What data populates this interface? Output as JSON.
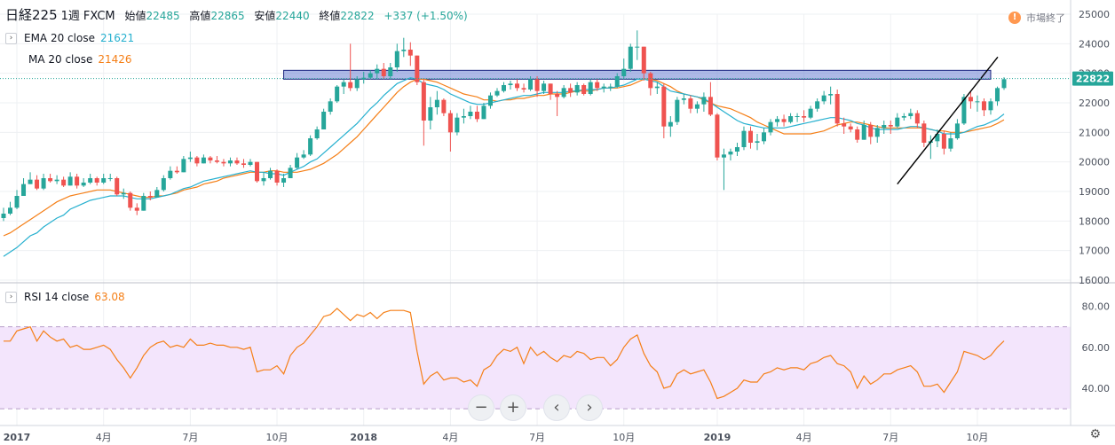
{
  "header": {
    "symbol": "日経225",
    "interval": "1週",
    "source": "FXCM",
    "open_label": "始値",
    "open": "22485",
    "high_label": "高値",
    "high": "22865",
    "low_label": "安値",
    "low": "22440",
    "close_label": "終値",
    "close": "22822",
    "change": "+337 (+1.50%)"
  },
  "legend": {
    "ema": {
      "name": "EMA 20 close",
      "value": "21621"
    },
    "ma": {
      "name": "MA  20 close",
      "value": "21426"
    },
    "rsi": {
      "name": "RSI  14 close",
      "value": "63.08"
    },
    "box_icon": "collapse-icon"
  },
  "market_status": {
    "icon": "exclamation-icon",
    "label": "市場終了"
  },
  "nav_buttons": [
    {
      "icon": "minus-icon",
      "glyph": "−"
    },
    {
      "icon": "plus-icon",
      "glyph": "+"
    },
    {
      "icon": "chevron-left-icon",
      "glyph": "‹"
    },
    {
      "icon": "chevron-right-icon",
      "glyph": "›"
    }
  ],
  "settings_icon": {
    "icon": "gear-icon",
    "glyph": "⚙"
  },
  "colors": {
    "up": "#26a69a",
    "down": "#ef5350",
    "ema": "#26b0cf",
    "ma": "#f57f17",
    "rsi": "#f57f17",
    "rsi_band": "#f3e5fc",
    "resistance": "#6a7fd1",
    "trendline": "#000000"
  },
  "chart_data": {
    "type": "candlestick",
    "price_axis": {
      "min": 16000,
      "max": 25000,
      "ticks": [
        16000,
        17000,
        18000,
        19000,
        20000,
        21000,
        22000,
        23000,
        24000,
        25000
      ],
      "tick_labels": [
        "16000",
        "17000",
        "18000",
        "19000",
        "20000",
        "21000",
        "22000",
        "23000",
        "24000",
        "25000"
      ]
    },
    "last_price": 22822,
    "last_price_label": "22822",
    "x_axis_labels": [
      {
        "week": 2,
        "label": "2017"
      },
      {
        "week": 15,
        "label": "4月"
      },
      {
        "week": 28,
        "label": "7月"
      },
      {
        "week": 41,
        "label": "10月"
      },
      {
        "week": 54,
        "label": "2018"
      },
      {
        "week": 67,
        "label": "4月"
      },
      {
        "week": 80,
        "label": "7月"
      },
      {
        "week": 93,
        "label": "10月"
      },
      {
        "week": 107,
        "label": "2019"
      },
      {
        "week": 120,
        "label": "4月"
      },
      {
        "week": 133,
        "label": "7月"
      },
      {
        "week": 146,
        "label": "10月"
      }
    ],
    "closes": [
      18250,
      18450,
      18850,
      19250,
      19400,
      19100,
      19450,
      19350,
      19400,
      19200,
      19500,
      19200,
      19300,
      19450,
      19300,
      19450,
      19450,
      18900,
      18950,
      18450,
      18350,
      18850,
      18800,
      19050,
      19450,
      19700,
      19650,
      20100,
      20150,
      19950,
      20150,
      20050,
      20000,
      19950,
      20050,
      19950,
      19900,
      20000,
      19350,
      19450,
      19700,
      19300,
      19450,
      19800,
      20150,
      20250,
      20800,
      21100,
      21700,
      22050,
      22550,
      22700,
      22500,
      22800,
      22850,
      23000,
      23150,
      22900,
      23200,
      23750,
      23800,
      23600,
      22700,
      21400,
      21850,
      22100,
      21650,
      21000,
      21500,
      21550,
      21700,
      21450,
      21900,
      22250,
      22400,
      22600,
      22650,
      22500,
      22450,
      22800,
      22400,
      22650,
      22300,
      22200,
      22500,
      22350,
      22600,
      22300,
      22700,
      22500,
      22550,
      22550,
      22900,
      23150,
      23900,
      23900,
      23000,
      22500,
      22550,
      21200,
      21350,
      22100,
      22150,
      21800,
      21950,
      22200,
      21600,
      20150,
      20250,
      20350,
      20500,
      21050,
      20650,
      20700,
      21000,
      21350,
      21450,
      21350,
      21550,
      21550,
      21500,
      21800,
      22050,
      22250,
      22300,
      21300,
      21200,
      21100,
      20750,
      21250,
      20850,
      21150,
      21250,
      21200,
      21500,
      21550,
      21650,
      21300,
      20650,
      20700,
      20950,
      20450,
      20800,
      21300,
      22200,
      22050,
      22050,
      21750,
      22050,
      22500,
      22800
    ],
    "highs": [
      18450,
      18650,
      19050,
      19450,
      19650,
      19550,
      19600,
      19600,
      19550,
      19500,
      19650,
      19600,
      19450,
      19600,
      19500,
      19600,
      19600,
      19500,
      19100,
      19000,
      18600,
      18950,
      19000,
      19150,
      19550,
      19850,
      19850,
      20200,
      20350,
      20200,
      20250,
      20200,
      20200,
      20100,
      20150,
      20150,
      20100,
      20100,
      20000,
      19650,
      19800,
      19750,
      19600,
      19900,
      20300,
      20400,
      20900,
      21200,
      21800,
      22150,
      22600,
      22800,
      24000,
      22900,
      23050,
      23100,
      23300,
      23350,
      23350,
      24000,
      24200,
      24050,
      23600,
      22800,
      22200,
      22400,
      22150,
      21750,
      21650,
      21800,
      21900,
      21900,
      22000,
      22350,
      22500,
      22700,
      22750,
      22800,
      22650,
      22900,
      22900,
      22750,
      22650,
      22400,
      22600,
      22650,
      22700,
      22650,
      22800,
      22800,
      22650,
      22650,
      23000,
      23500,
      24000,
      24450,
      23900,
      23050,
      22700,
      22650,
      21550,
      22200,
      22300,
      22250,
      22050,
      22350,
      22700,
      21650,
      20450,
      20450,
      20650,
      21200,
      21200,
      20950,
      21150,
      21450,
      21550,
      21600,
      21650,
      21650,
      21750,
      21900,
      22150,
      22400,
      22550,
      22450,
      21500,
      21300,
      21200,
      21400,
      21350,
      21250,
      21400,
      21400,
      21650,
      21650,
      21800,
      21750,
      21400,
      20900,
      21100,
      21050,
      21000,
      21450,
      22300,
      22400,
      22250,
      22150,
      22150,
      22550,
      22865
    ],
    "lows": [
      18000,
      18200,
      18400,
      18850,
      19250,
      19050,
      19050,
      19300,
      19250,
      19150,
      19200,
      19100,
      19150,
      19250,
      19200,
      19250,
      19350,
      18850,
      18750,
      18350,
      18200,
      18350,
      18700,
      18800,
      19000,
      19400,
      19600,
      19650,
      20000,
      19850,
      19950,
      19950,
      19950,
      19850,
      19850,
      19900,
      19800,
      19850,
      19300,
      19200,
      19400,
      19200,
      19150,
      19450,
      19750,
      20100,
      20200,
      20750,
      21100,
      21600,
      22000,
      22300,
      22400,
      22400,
      22650,
      22800,
      22800,
      22800,
      22800,
      23050,
      23550,
      23250,
      22600,
      20550,
      21100,
      21600,
      21550,
      20350,
      20900,
      21300,
      21450,
      21350,
      21450,
      21800,
      22200,
      22350,
      22450,
      22400,
      22350,
      22400,
      22200,
      22300,
      22100,
      21550,
      22150,
      22200,
      22250,
      22250,
      22250,
      22400,
      22350,
      22400,
      22500,
      22800,
      23050,
      23450,
      22750,
      22250,
      22300,
      20800,
      20850,
      21250,
      21950,
      21650,
      21650,
      21700,
      21550,
      20050,
      19050,
      20050,
      20200,
      20400,
      20450,
      20400,
      20600,
      20900,
      21200,
      21200,
      21300,
      21350,
      21350,
      21450,
      21700,
      21950,
      21950,
      21200,
      20950,
      21000,
      20650,
      20750,
      20600,
      20650,
      20950,
      20950,
      21150,
      21400,
      21450,
      21150,
      20500,
      20100,
      20500,
      20250,
      20350,
      20750,
      21250,
      21800,
      21700,
      21550,
      21600,
      21900,
      22440
    ],
    "ema20": [
      16800,
      16950,
      17100,
      17300,
      17500,
      17600,
      17800,
      17950,
      18100,
      18200,
      18400,
      18500,
      18600,
      18700,
      18750,
      18800,
      18850,
      18850,
      18850,
      18800,
      18750,
      18750,
      18750,
      18800,
      18850,
      18900,
      19000,
      19100,
      19150,
      19250,
      19350,
      19400,
      19450,
      19500,
      19550,
      19600,
      19650,
      19700,
      19650,
      19650,
      19600,
      19600,
      19550,
      19650,
      19750,
      19850,
      20000,
      20100,
      20300,
      20500,
      20700,
      20900,
      21100,
      21300,
      21550,
      21800,
      22000,
      22250,
      22450,
      22650,
      22750,
      22850,
      22800,
      22650,
      22600,
      22550,
      22450,
      22300,
      22200,
      22100,
      22000,
      21950,
      21950,
      22000,
      22050,
      22100,
      22150,
      22200,
      22250,
      22250,
      22300,
      22350,
      22350,
      22350,
      22350,
      22400,
      22400,
      22450,
      22450,
      22450,
      22500,
      22500,
      22550,
      22600,
      22700,
      22800,
      22800,
      22750,
      22700,
      22550,
      22400,
      22350,
      22300,
      22250,
      22200,
      22150,
      22000,
      21850,
      21700,
      21550,
      21400,
      21300,
      21250,
      21200,
      21150,
      21150,
      21150,
      21150,
      21200,
      21250,
      21300,
      21350,
      21400,
      21450,
      21500,
      21500,
      21450,
      21400,
      21300,
      21250,
      21150,
      21100,
      21100,
      21100,
      21100,
      21150,
      21200,
      21200,
      21150,
      21100,
      21050,
      20950,
      20950,
      20950,
      21000,
      21100,
      21200,
      21250,
      21350,
      21450,
      21621
    ],
    "ma20": [
      17500,
      17600,
      17750,
      17900,
      18050,
      18200,
      18350,
      18500,
      18650,
      18750,
      18850,
      18900,
      18950,
      19000,
      19050,
      19050,
      19050,
      19000,
      18950,
      18900,
      18850,
      18800,
      18800,
      18850,
      18850,
      18900,
      18950,
      19050,
      19100,
      19150,
      19250,
      19300,
      19350,
      19450,
      19500,
      19550,
      19600,
      19650,
      19650,
      19650,
      19700,
      19700,
      19650,
      19650,
      19650,
      19700,
      19750,
      19850,
      19950,
      20100,
      20250,
      20450,
      20650,
      20850,
      21100,
      21350,
      21600,
      21850,
      22100,
      22350,
      22550,
      22700,
      22800,
      22800,
      22750,
      22700,
      22600,
      22500,
      22400,
      22300,
      22250,
      22200,
      22100,
      22100,
      22050,
      22100,
      22100,
      22150,
      22150,
      22200,
      22250,
      22250,
      22300,
      22300,
      22300,
      22350,
      22400,
      22400,
      22400,
      22450,
      22500,
      22500,
      22500,
      22550,
      22600,
      22700,
      22800,
      22800,
      22750,
      22650,
      22550,
      22400,
      22300,
      22250,
      22200,
      22100,
      22000,
      21900,
      21850,
      21800,
      21700,
      21600,
      21500,
      21350,
      21250,
      21150,
      21050,
      20950,
      20950,
      20950,
      20950,
      20950,
      21000,
      21050,
      21150,
      21250,
      21300,
      21350,
      21350,
      21300,
      21250,
      21200,
      21150,
      21150,
      21150,
      21150,
      21150,
      21150,
      21150,
      21100,
      21050,
      21050,
      21000,
      21000,
      21000,
      21050,
      21100,
      21150,
      21200,
      21300,
      21426
    ],
    "resistance_zone": {
      "from_week": 42,
      "to_week": 148,
      "low": 22800,
      "high": 23100
    },
    "trendline": {
      "from_week": 134,
      "from_price": 19250,
      "to_week": 148,
      "to_price": 23250
    },
    "rsi": {
      "name": "RSI 14 close",
      "axis": {
        "min": 27,
        "max": 85,
        "ticks": [
          40,
          60,
          80
        ],
        "tick_labels": [
          "40.00",
          "60.00",
          "80.00"
        ]
      },
      "bands": [
        30,
        70
      ],
      "values": [
        63,
        63,
        68,
        69,
        70,
        63,
        68,
        65,
        63,
        64,
        60,
        61,
        59,
        59,
        60,
        61,
        59,
        54,
        50,
        45,
        50,
        56,
        60,
        62,
        63,
        60,
        61,
        60,
        64,
        61,
        61,
        62,
        61,
        61,
        60,
        60,
        59,
        60,
        48,
        49,
        49,
        51,
        47,
        56,
        60,
        62,
        66,
        70,
        75,
        76,
        79,
        76,
        73,
        76,
        75,
        77,
        74,
        77,
        78,
        78,
        78,
        77,
        58,
        42,
        46,
        48,
        44,
        45,
        45,
        43,
        44,
        41,
        49,
        51,
        56,
        59,
        58,
        60,
        52,
        60,
        56,
        58,
        55,
        53,
        56,
        55,
        58,
        57,
        54,
        55,
        55,
        51,
        54,
        60,
        64,
        66,
        57,
        51,
        48,
        40,
        41,
        47,
        49,
        47,
        48,
        49,
        43,
        35,
        36,
        38,
        40,
        44,
        43,
        43,
        47,
        48,
        50,
        49,
        50,
        50,
        49,
        52,
        53,
        55,
        56,
        52,
        51,
        48,
        40,
        46,
        42,
        44,
        47,
        47,
        49,
        50,
        51,
        48,
        41,
        41,
        42,
        38,
        43,
        48,
        58,
        57,
        56,
        54,
        56,
        60,
        63.08
      ]
    }
  }
}
